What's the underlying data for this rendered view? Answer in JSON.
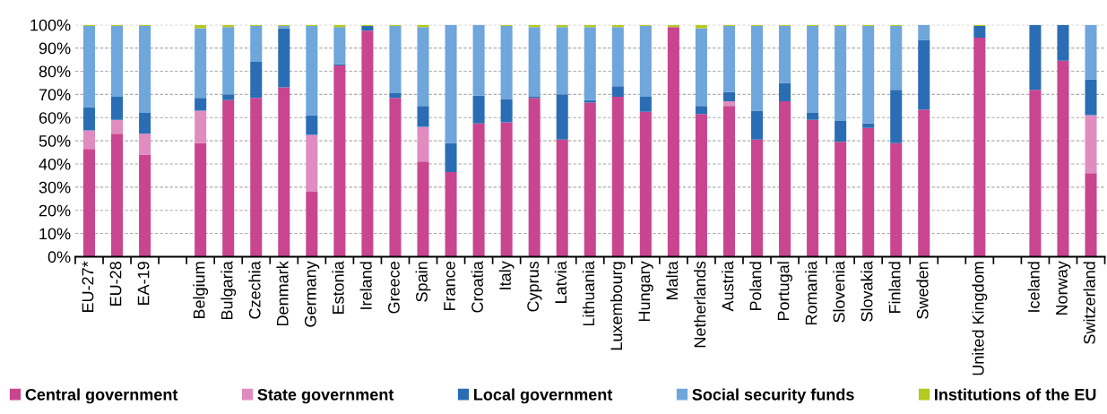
{
  "chart_data": {
    "type": "bar",
    "stacked": true,
    "categories": [
      "EU-27*",
      "EU-28",
      "EA-19",
      null,
      "Belgium",
      "Bulgaria",
      "Czechia",
      "Denmark",
      "Germany",
      "Estonia",
      "Ireland",
      "Greece",
      "Spain",
      "France",
      "Croatia",
      "Italy",
      "Cyprus",
      "Latvia",
      "Lithuania",
      "Luxembourg",
      "Hungary",
      "Malta",
      "Netherlands",
      "Austria",
      "Poland",
      "Portugal",
      "Romania",
      "Slovenia",
      "Slovakia",
      "Finland",
      "Sweden",
      null,
      "United Kingdom",
      null,
      "Iceland",
      "Norway",
      "Switzerland"
    ],
    "series": [
      {
        "name": "Central government",
        "color": "#c9458f",
        "values": [
          46.5,
          53,
          44,
          null,
          49,
          67.5,
          68.5,
          73,
          28,
          82.5,
          97.5,
          68.5,
          41,
          36.5,
          57.5,
          58,
          68.5,
          50.5,
          66.5,
          69,
          62.5,
          99,
          61.5,
          65,
          50.5,
          67,
          59,
          49.5,
          55.5,
          49,
          63.5,
          null,
          94.5,
          null,
          72,
          84.5,
          36
        ]
      },
      {
        "name": "State government",
        "color": "#e08cc0",
        "values": [
          8,
          6,
          9,
          null,
          14,
          0,
          0,
          0,
          24.5,
          0,
          0,
          0,
          15,
          0,
          0,
          0,
          0,
          0,
          0,
          0,
          0,
          0,
          0,
          2,
          0,
          0,
          0,
          0,
          0,
          0,
          0,
          null,
          0,
          null,
          0,
          0,
          25
        ]
      },
      {
        "name": "Local government",
        "color": "#2a6db5",
        "values": [
          10,
          10,
          9,
          null,
          5.5,
          2.5,
          15.5,
          25.5,
          8.5,
          0.5,
          2,
          2,
          9,
          12.5,
          12,
          10,
          0.5,
          19.5,
          1,
          4.5,
          6.5,
          0,
          3.5,
          4,
          12.5,
          8,
          3,
          9,
          2,
          23,
          30,
          null,
          5,
          null,
          28,
          15.5,
          15.5
        ]
      },
      {
        "name": "Social security funds",
        "color": "#6fa6dc",
        "values": [
          35,
          30.5,
          37.5,
          null,
          30,
          29,
          15.5,
          1,
          38.5,
          16,
          0,
          29,
          34,
          51,
          30.5,
          31.5,
          30,
          29,
          31.5,
          25.5,
          30.5,
          0,
          33.5,
          28.5,
          36.5,
          24.5,
          37.5,
          41,
          42,
          27.5,
          6.5,
          null,
          0,
          null,
          0,
          0,
          23.5
        ]
      },
      {
        "name": "Institutions of the EU",
        "color": "#b5c91e",
        "values": [
          0.5,
          0.5,
          0.5,
          null,
          1.5,
          1,
          0.5,
          0.5,
          0.5,
          1,
          0.5,
          0.5,
          1,
          0,
          0,
          0.5,
          1,
          1,
          1,
          1,
          0.5,
          1,
          1.5,
          0.5,
          0.5,
          0.5,
          0.5,
          0.5,
          0.5,
          0.5,
          0,
          null,
          0.5,
          null,
          0,
          0,
          0
        ]
      }
    ],
    "ylim": [
      0,
      100
    ],
    "yticks": [
      {
        "value": 0,
        "label": "0%"
      },
      {
        "value": 10,
        "label": "10%"
      },
      {
        "value": 20,
        "label": "20%"
      },
      {
        "value": 30,
        "label": "30%"
      },
      {
        "value": 40,
        "label": "40%"
      },
      {
        "value": 50,
        "label": "50%"
      },
      {
        "value": 60,
        "label": "60%"
      },
      {
        "value": 70,
        "label": "70%"
      },
      {
        "value": 80,
        "label": "80%"
      },
      {
        "value": 90,
        "label": "90%"
      },
      {
        "value": 100,
        "label": "100%"
      }
    ],
    "grid": "y",
    "legend": "bottom"
  }
}
